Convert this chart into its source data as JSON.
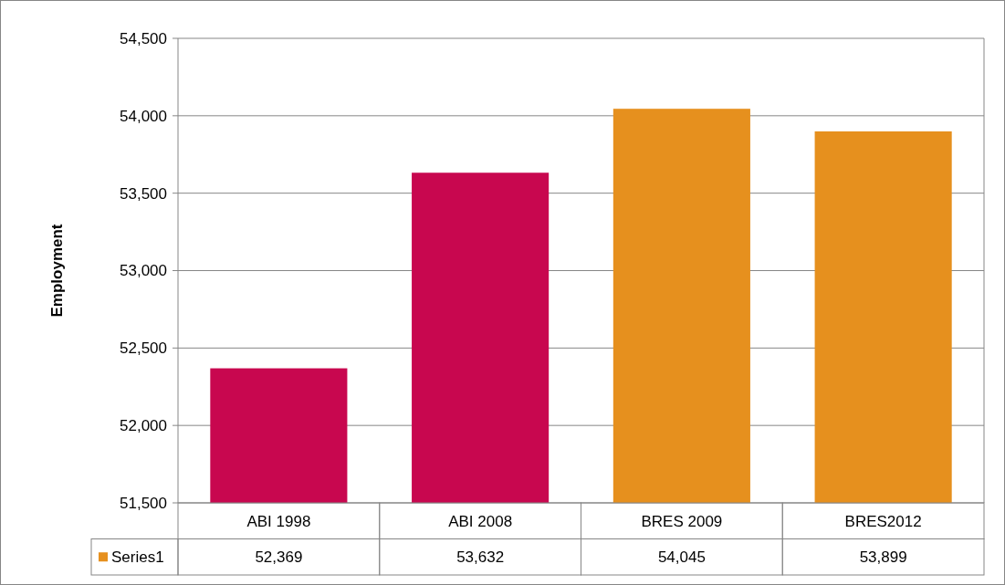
{
  "chart_data": {
    "type": "bar",
    "ylabel": "Employment",
    "categories": [
      "ABI 1998",
      "ABI 2008",
      "BRES 2009",
      "BRES2012"
    ],
    "series": [
      {
        "name": "Series1",
        "color": "#e6901e",
        "colors": [
          "#c8074f",
          "#c8074f",
          "#e6901e",
          "#e6901e"
        ],
        "values": [
          52369,
          53632,
          54045,
          53899
        ],
        "value_labels": [
          "52,369",
          "53,632",
          "54,045",
          "53,899"
        ]
      }
    ],
    "ylim": [
      51500,
      54500
    ],
    "yticks": [
      {
        "value": 51500,
        "label": "51,500"
      },
      {
        "value": 52000,
        "label": "52,000"
      },
      {
        "value": 52500,
        "label": "52,500"
      },
      {
        "value": 53000,
        "label": "53,000"
      },
      {
        "value": 53500,
        "label": "53,500"
      },
      {
        "value": 54000,
        "label": "54,000"
      },
      {
        "value": 54500,
        "label": "54,500"
      }
    ],
    "grid": "y",
    "legend": "bottom"
  }
}
